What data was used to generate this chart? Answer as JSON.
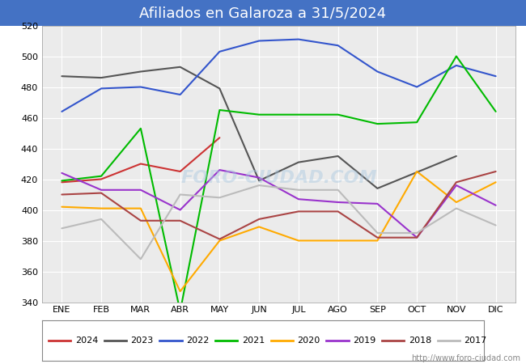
{
  "title": "Afiliados en Galaroza a 31/5/2024",
  "title_bg_color": "#4472c4",
  "title_text_color": "white",
  "ylim": [
    340,
    520
  ],
  "yticks": [
    340,
    360,
    380,
    400,
    420,
    440,
    460,
    480,
    500,
    520
  ],
  "months": [
    "ENE",
    "FEB",
    "MAR",
    "ABR",
    "MAY",
    "JUN",
    "JUL",
    "AGO",
    "SEP",
    "OCT",
    "NOV",
    "DIC"
  ],
  "watermark": "http://www.foro-ciudad.com",
  "series": {
    "2024": {
      "color": "#cc3333",
      "data": [
        418,
        420,
        430,
        425,
        447,
        null,
        null,
        null,
        null,
        null,
        null,
        null
      ]
    },
    "2023": {
      "color": "#555555",
      "data": [
        487,
        486,
        490,
        493,
        479,
        419,
        431,
        435,
        414,
        null,
        435,
        null
      ]
    },
    "2022": {
      "color": "#3355cc",
      "data": [
        464,
        479,
        480,
        475,
        503,
        510,
        511,
        507,
        490,
        480,
        494,
        487
      ]
    },
    "2021": {
      "color": "#00bb00",
      "data": [
        419,
        422,
        453,
        334,
        465,
        462,
        462,
        462,
        456,
        457,
        500,
        464
      ]
    },
    "2020": {
      "color": "#ffaa00",
      "data": [
        402,
        401,
        401,
        347,
        380,
        389,
        380,
        380,
        380,
        425,
        405,
        418
      ]
    },
    "2019": {
      "color": "#9933cc",
      "data": [
        424,
        413,
        413,
        400,
        426,
        421,
        407,
        405,
        404,
        382,
        416,
        403
      ]
    },
    "2018": {
      "color": "#aa4444",
      "data": [
        410,
        411,
        393,
        393,
        381,
        394,
        399,
        399,
        382,
        382,
        418,
        425
      ]
    },
    "2017": {
      "color": "#bbbbbb",
      "data": [
        388,
        394,
        368,
        410,
        408,
        416,
        413,
        413,
        385,
        385,
        401,
        390
      ]
    }
  }
}
